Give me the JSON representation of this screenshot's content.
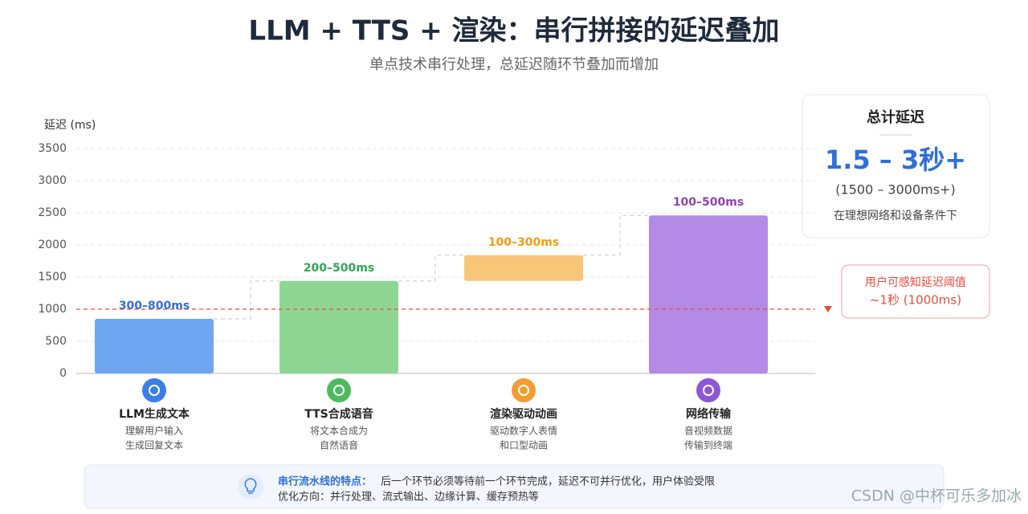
{
  "chart_data": {
    "type": "range-bar",
    "title": "LLM + TTS + 渲染：串行拼接的延迟叠加",
    "subtitle": "单点技术串行处理，总延迟随环节叠加而增加",
    "y_label": "延迟 (ms)",
    "ylim": [
      0,
      3500
    ],
    "yticks": [
      0,
      500,
      1000,
      1500,
      2000,
      2500,
      3000,
      3500
    ],
    "grid": true,
    "categories": [
      "LLM生成文本",
      "TTS合成语音",
      "渲染驱动动画",
      "网络传输"
    ],
    "descriptions": [
      [
        "理解用户输入",
        "生成回复文本"
      ],
      [
        "将文本合成为",
        "自然语音"
      ],
      [
        "驱动数字人表情",
        "和口型动画"
      ],
      [
        "音视频数据",
        "传输到终端"
      ]
    ],
    "starts": [
      0,
      0,
      1440,
      0
    ],
    "ends": [
      850,
      1440,
      1840,
      2460
    ],
    "range_labels": [
      "300–800ms",
      "200–500ms",
      "100–300ms",
      "100–500ms"
    ],
    "colors": [
      "#6fa6f2",
      "#8fd694",
      "#f8c678",
      "#b38ae6"
    ],
    "label_colors": [
      "#2f6fd8",
      "#30a852",
      "#f39c12",
      "#8e44ad"
    ],
    "icon_colors": [
      "#3b7ee6",
      "#4cbb5e",
      "#f39c32",
      "#8e55d6"
    ],
    "threshold": {
      "value": 1000,
      "label_lines": [
        "用户可感知延迟阈值",
        "~1秒 (1000ms)"
      ],
      "color": "#e74c3c"
    },
    "total": {
      "title": "总计延迟",
      "value": "1.5 – 3秒+",
      "detail": "(1500 – 3000ms+)",
      "note": "在理想网络和设备条件下"
    },
    "footer": {
      "heading": "串行流水线的特点：",
      "text": "后一个环节必须等待前一个环节完成，延迟不可并行优化，用户体验受限",
      "line2": "优化方向：并行处理、流式输出、边缘计算、缓存预热等"
    },
    "watermark": "CSDN @中杯可乐多加冰"
  }
}
